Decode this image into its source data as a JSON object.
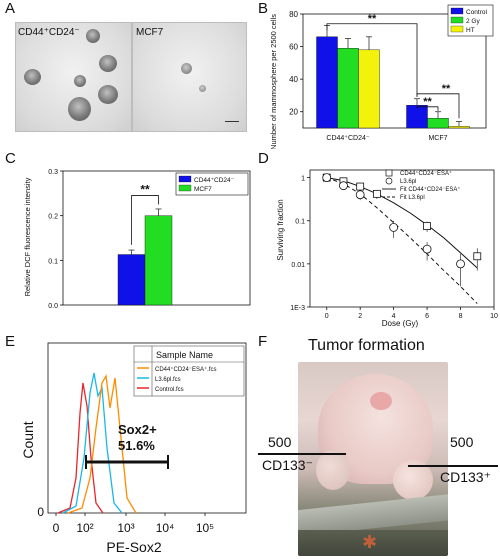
{
  "panels": {
    "A": "A",
    "B": "B",
    "C": "C",
    "D": "D",
    "E": "E",
    "F": "F"
  },
  "panelA": {
    "left_label": "CD44⁺CD24⁻",
    "right_label": "MCF7"
  },
  "chart_data": [
    {
      "type": "bar",
      "panel": "B",
      "categories": [
        "CD44⁺CD24⁻",
        "MCF7"
      ],
      "series": [
        {
          "name": "Control",
          "color": "#1010e8",
          "values": [
            66,
            24
          ],
          "errors": [
            7,
            4
          ]
        },
        {
          "name": "2 Gy",
          "color": "#22dd22",
          "values": [
            59,
            16
          ],
          "errors": [
            6,
            4
          ]
        },
        {
          "name": "HT",
          "color": "#f2f20a",
          "values": [
            58,
            11
          ],
          "errors": [
            8,
            3
          ]
        }
      ],
      "ylabel": "Number of mammosphere per 2500 cells",
      "ylim": [
        10,
        80
      ],
      "yticks": [
        20,
        40,
        60,
        80
      ],
      "annotations": [
        "**",
        "**",
        "**"
      ],
      "legend": "top-right"
    },
    {
      "type": "bar",
      "panel": "C",
      "categories": [
        ""
      ],
      "series": [
        {
          "name": "CD44⁺CD24⁻",
          "color": "#1010e8",
          "values": [
            0.113
          ],
          "errors": [
            0.01
          ]
        },
        {
          "name": "MCF7",
          "color": "#22dd22",
          "values": [
            0.2
          ],
          "errors": [
            0.015
          ]
        }
      ],
      "ylabel": "Relative DCF fluorescence intensity",
      "ylim": [
        0.0,
        0.3
      ],
      "yticks": [
        "0.0",
        "0.1",
        "0.2",
        "0.3"
      ],
      "annotations": [
        "**"
      ],
      "legend": "top-right"
    },
    {
      "type": "scatter",
      "panel": "D",
      "xlabel": "Dose (Gy)",
      "ylabel": "Surviving fraction",
      "xlim": [
        -1,
        10
      ],
      "xticks": [
        0,
        2,
        4,
        6,
        8,
        10
      ],
      "ylim": [
        0.001,
        1.5
      ],
      "yscale": "log",
      "yticks": [
        "1E-3",
        "0.01",
        "0.1",
        "1"
      ],
      "series": [
        {
          "name": "CD44⁺CD24⁻ESA⁺",
          "marker": "square",
          "x": [
            0,
            1,
            2,
            3,
            6,
            9
          ],
          "y": [
            1.0,
            0.82,
            0.62,
            0.42,
            0.075,
            0.015
          ],
          "errors": [
            0.1,
            0.1,
            0.1,
            0.1,
            0.02,
            0.008
          ]
        },
        {
          "name": "L3.6pl",
          "marker": "circle",
          "x": [
            0,
            1,
            2,
            4,
            6,
            8
          ],
          "y": [
            1.0,
            0.65,
            0.4,
            0.07,
            0.022,
            0.01
          ],
          "errors": [
            0.1,
            0.1,
            0.1,
            0.03,
            0.01,
            0.007
          ]
        },
        {
          "name": "Fit CD44⁺CD24⁻ESA⁺",
          "line": "solid",
          "x": [
            0,
            1,
            2,
            3,
            4,
            5,
            6,
            7,
            8,
            9
          ],
          "y": [
            1.0,
            0.85,
            0.62,
            0.42,
            0.26,
            0.15,
            0.08,
            0.04,
            0.018,
            0.008
          ]
        },
        {
          "name": "Fit L3.6pl",
          "line": "dashed",
          "x": [
            0,
            1,
            2,
            3,
            4,
            5,
            6,
            7,
            8,
            9
          ],
          "y": [
            1.0,
            0.72,
            0.42,
            0.2,
            0.09,
            0.04,
            0.017,
            0.007,
            0.003,
            0.0012
          ]
        }
      ],
      "legend": "top-right"
    },
    {
      "type": "line",
      "panel": "E",
      "xlabel": "PE-Sox2",
      "ylabel": "Count",
      "xscale": "log",
      "xticks": [
        "0",
        "10²",
        "10³",
        "10⁴",
        "10⁵"
      ],
      "legend_title": "Sample Name",
      "series": [
        {
          "name": "CD44⁺CD24⁻ESA⁺.fcs",
          "color": "#ff8c00"
        },
        {
          "name": "L3.6pl.fcs",
          "color": "#19b8e6"
        },
        {
          "name": "Control.fcs",
          "color": "#e8262c"
        }
      ],
      "annotations": [
        "Sox2+",
        "51.6%"
      ],
      "ylim": [
        0,
        100
      ],
      "yticks": [
        "0"
      ]
    }
  ],
  "panelF": {
    "title": "Tumor formation",
    "left_value": "500",
    "left_marker": "CD133⁻",
    "right_value": "500",
    "right_marker": "CD133⁺"
  }
}
